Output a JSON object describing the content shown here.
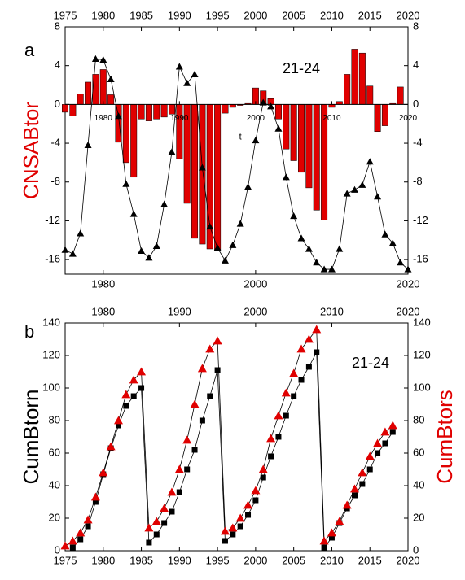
{
  "chart_data": [
    {
      "type": "combo",
      "label": "a",
      "annotation": "21-24",
      "ylabel": "CNSABtor",
      "ylabel_color": "#e00000",
      "xlabel": "t",
      "xlim": [
        1975,
        2020
      ],
      "ylim": [
        -17.5,
        8
      ],
      "y2lim": [
        -17.5,
        8
      ],
      "x2ticks": [
        1975,
        1980,
        1985,
        1990,
        1995,
        2000,
        2005,
        2010,
        2015,
        2020
      ],
      "xticks": [
        1980,
        2000,
        2020
      ],
      "inner_xticks": [
        1980,
        1990,
        2000,
        2010,
        2020
      ],
      "yticks": [
        8,
        4,
        0,
        -4,
        -8,
        -12,
        -16
      ],
      "y2ticks": [
        8,
        4,
        0,
        -4,
        -8,
        -12,
        -16
      ],
      "bars": {
        "color": "#e00000",
        "x": [
          1975,
          1976,
          1977,
          1978,
          1979,
          1980,
          1981,
          1982,
          1983,
          1984,
          1985,
          1986,
          1987,
          1988,
          1989,
          1990,
          1991,
          1992,
          1993,
          1994,
          1995,
          1996,
          1997,
          1998,
          1999,
          2000,
          2001,
          2002,
          2003,
          2004,
          2005,
          2006,
          2007,
          2008,
          2009,
          2010,
          2011,
          2012,
          2013,
          2014,
          2015,
          2016,
          2017,
          2018,
          2019
        ],
        "values": [
          -0.8,
          -1.2,
          1.1,
          2.3,
          3.1,
          3.6,
          1.0,
          -3.9,
          -6.0,
          -7.5,
          -1.5,
          -1.7,
          -1.5,
          -1.3,
          -1.0,
          -5.6,
          -10.2,
          -13.8,
          -14.4,
          -14.9,
          -15.0,
          -0.9,
          -0.3,
          -0.1,
          0.1,
          1.7,
          1.4,
          0.6,
          -1.5,
          -4.6,
          -5.8,
          -7.0,
          -8.6,
          -10.9,
          -11.9,
          -0.3,
          0.3,
          3.1,
          5.7,
          5.3,
          1.9,
          -2.8,
          -2.2,
          0.1,
          1.8
        ]
      },
      "series": [
        {
          "color": "#000000",
          "marker": "triangle",
          "x": [
            1975,
            1976,
            1977,
            1978,
            1979,
            1980,
            1981,
            1982,
            1983,
            1984,
            1985,
            1986,
            1987,
            1988,
            1989,
            1990,
            1991,
            1992,
            1993,
            1994,
            1995,
            1996,
            1997,
            1998,
            1999,
            2000,
            2001,
            2002,
            2003,
            2004,
            2005,
            2006,
            2007,
            2008,
            2009,
            2010,
            2011,
            2012,
            2013,
            2014,
            2015,
            2016,
            2017,
            2018,
            2019,
            2020
          ],
          "values": [
            -15,
            -15.4,
            -13.3,
            -4.2,
            4.7,
            4.6,
            2.6,
            -1.2,
            -8.2,
            -11.3,
            -15.1,
            -15.8,
            -14.6,
            -10.3,
            -4.9,
            3.9,
            2.2,
            3.1,
            -6.5,
            -12.6,
            -14.8,
            -16.1,
            -14.5,
            -12.3,
            -8.5,
            -3.7,
            0.2,
            -0.2,
            -2.5,
            -7.5,
            -11.5,
            -13.8,
            -14.9,
            -16.3,
            -17,
            -17,
            -14.9,
            -9.2,
            -8.8,
            -8.3,
            -5.9,
            -9.5,
            -13.4,
            -14.3,
            -16.3,
            -17
          ]
        }
      ]
    },
    {
      "type": "scatter",
      "label": "b",
      "annotation": "21-24",
      "ylabel": "CumBtorn",
      "ylabel_color": "#000000",
      "y2label": "CumBtors",
      "y2label_color": "#e00000",
      "xlim": [
        1975,
        2020
      ],
      "ylim": [
        0,
        140
      ],
      "y2lim": [
        0,
        140
      ],
      "x2ticks": [
        1980,
        1990,
        2000,
        2010,
        2020
      ],
      "xticks": [
        1975,
        1980,
        1985,
        1990,
        1995,
        2000,
        2005,
        2010,
        2015,
        2020
      ],
      "yticks": [
        0,
        20,
        40,
        60,
        80,
        100,
        120,
        140
      ],
      "y2ticks": [
        0,
        20,
        40,
        60,
        80,
        100,
        120,
        140
      ],
      "series": [
        {
          "color": "#000000",
          "marker": "square",
          "x": [
            1976,
            1977,
            1978,
            1979,
            1980,
            1981,
            1982,
            1983,
            1984,
            1985,
            1986,
            1987,
            1988,
            1989,
            1990,
            1991,
            1992,
            1993,
            1994,
            1995,
            1996,
            1997,
            1998,
            1999,
            2000,
            2001,
            2002,
            2003,
            2004,
            2005,
            2006,
            2007,
            2008,
            2009,
            2010,
            2011,
            2012,
            2013,
            2014,
            2015,
            2016,
            2017,
            2018
          ],
          "values": [
            2,
            7,
            15,
            30,
            47,
            63,
            77,
            89,
            95,
            100,
            5,
            10,
            17,
            24,
            36,
            50,
            62,
            80,
            95,
            111,
            6,
            10,
            15,
            22,
            31,
            45,
            58,
            70,
            83,
            95,
            105,
            113,
            122,
            2,
            8,
            17,
            26,
            34,
            41,
            50,
            60,
            66,
            73
          ]
        },
        {
          "color": "#e00000",
          "marker": "triangle",
          "axis": "y2",
          "x": [
            1975,
            1976,
            1977,
            1978,
            1979,
            1980,
            1981,
            1982,
            1983,
            1984,
            1985,
            1986,
            1987,
            1988,
            1989,
            1990,
            1991,
            1992,
            1993,
            1994,
            1995,
            1996,
            1997,
            1998,
            1999,
            2000,
            2001,
            2002,
            2003,
            2004,
            2005,
            2006,
            2007,
            2008,
            2009,
            2010,
            2011,
            2012,
            2013,
            2014,
            2015,
            2016,
            2017,
            2018
          ],
          "values": [
            3,
            6,
            11,
            19,
            33,
            48,
            64,
            80,
            96,
            105,
            110,
            14,
            18,
            26,
            36,
            50,
            68,
            90,
            112,
            124,
            129,
            12,
            14,
            20,
            28,
            37,
            50,
            69,
            83,
            97,
            109,
            124,
            130,
            136,
            6,
            11,
            18,
            28,
            38,
            48,
            58,
            66,
            73,
            77
          ]
        }
      ]
    }
  ]
}
